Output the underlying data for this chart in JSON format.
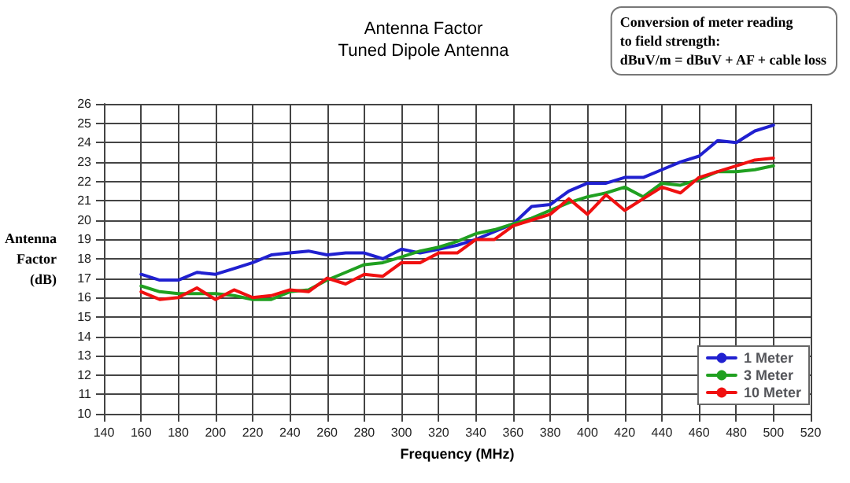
{
  "chart_data": {
    "type": "line",
    "title": "Antenna Factor",
    "subtitle": "Tuned Dipole Antenna",
    "xlabel": "Frequency (MHz)",
    "ylabel": "Antenna Factor (dB)",
    "annotations": [
      "Conversion of meter reading\nto field strength:\ndBuV/m = dBuV + AF + cable loss"
    ],
    "x": [
      160,
      170,
      180,
      190,
      200,
      210,
      220,
      230,
      240,
      250,
      260,
      270,
      280,
      290,
      300,
      310,
      320,
      330,
      340,
      350,
      360,
      370,
      380,
      390,
      400,
      410,
      420,
      430,
      440,
      450,
      460,
      470,
      480,
      490,
      500
    ],
    "series": [
      {
        "name": "1 Meter",
        "color": "#2020d0",
        "values": [
          17.2,
          16.9,
          16.9,
          17.3,
          17.2,
          17.5,
          17.8,
          18.2,
          18.3,
          18.4,
          18.2,
          18.3,
          18.3,
          18.0,
          18.5,
          18.3,
          18.5,
          18.7,
          19.0,
          19.4,
          19.8,
          20.7,
          20.8,
          21.5,
          21.9,
          21.9,
          22.2,
          22.2,
          22.6,
          23.0,
          23.3,
          24.1,
          24.0,
          24.6,
          24.9
        ]
      },
      {
        "name": "3 Meter",
        "color": "#20a020",
        "values": [
          16.6,
          16.3,
          16.2,
          16.2,
          16.2,
          16.1,
          15.9,
          15.9,
          16.3,
          16.4,
          16.9,
          17.3,
          17.7,
          17.8,
          18.1,
          18.4,
          18.6,
          18.9,
          19.3,
          19.5,
          19.8,
          20.1,
          20.5,
          20.9,
          21.2,
          21.4,
          21.7,
          21.2,
          21.9,
          21.8,
          22.1,
          22.5,
          22.5,
          22.6,
          22.8
        ]
      },
      {
        "name": "10 Meter",
        "color": "#f01010",
        "values": [
          16.3,
          15.9,
          16.0,
          16.5,
          15.9,
          16.4,
          16.0,
          16.1,
          16.4,
          16.3,
          17.0,
          16.7,
          17.2,
          17.1,
          17.8,
          17.8,
          18.3,
          18.3,
          19.0,
          19.0,
          19.7,
          20.0,
          20.3,
          21.1,
          20.3,
          21.3,
          20.5,
          21.1,
          21.7,
          21.4,
          22.2,
          22.5,
          22.8,
          23.1,
          23.2
        ]
      }
    ],
    "xlim": [
      140,
      520
    ],
    "xticks": [
      140,
      160,
      180,
      200,
      220,
      240,
      260,
      280,
      300,
      320,
      340,
      360,
      380,
      400,
      420,
      440,
      460,
      480,
      500,
      520
    ],
    "ylim": [
      10,
      26
    ],
    "yticks": [
      10,
      11,
      12,
      13,
      14,
      15,
      16,
      17,
      18,
      19,
      20,
      21,
      22,
      23,
      24,
      25,
      26
    ],
    "grid": true,
    "legend": "bottom right",
    "marker": "none",
    "line_style": "solid"
  }
}
